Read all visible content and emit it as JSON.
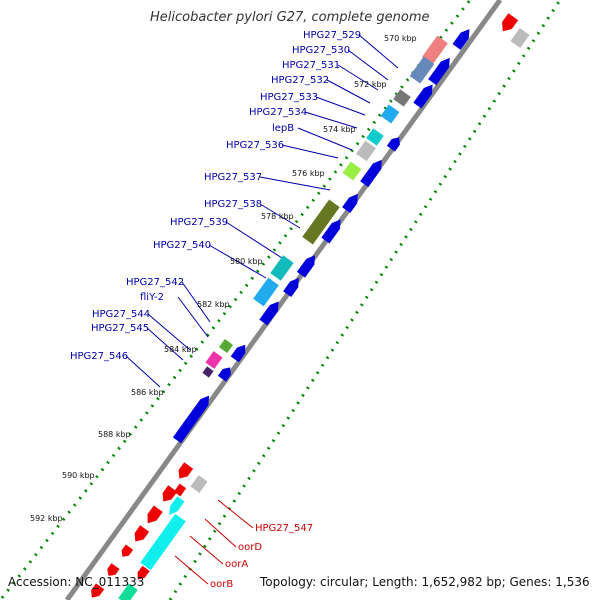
{
  "title": "Helicobacter pylori G27, complete genome",
  "footer": {
    "accession": "Accession: NC_011333",
    "info": "Topology: circular; Length: 1,652,982 bp; Genes: 1,536"
  },
  "ticks": [
    "570 kbp",
    "572 kbp",
    "574 kbp",
    "576 kbp",
    "578 kbp",
    "580 kbp",
    "582 kbp",
    "584 kbp",
    "586 kbp",
    "588 kbp",
    "590 kbp",
    "592 kbp"
  ],
  "genes_blue": [
    "HPG27_529",
    "HPG27_530",
    "HPG27_531",
    "HPG27_532",
    "HPG27_533",
    "HPG27_534",
    "lepB",
    "HPG27_536",
    "HPG27_537",
    "HPG27_538",
    "HPG27_539",
    "HPG27_540",
    "HPG27_542",
    "fliY-2",
    "HPG27_544",
    "HPG27_545",
    "HPG27_546"
  ],
  "genes_red": [
    "HPG27_547",
    "oorD",
    "oorA",
    "oorB"
  ],
  "colors": {
    "blue_label": "#0000aa",
    "red_label": "#cc0000",
    "cds": "#0000dd",
    "rna": "#ee0000",
    "dots": "#008800"
  }
}
